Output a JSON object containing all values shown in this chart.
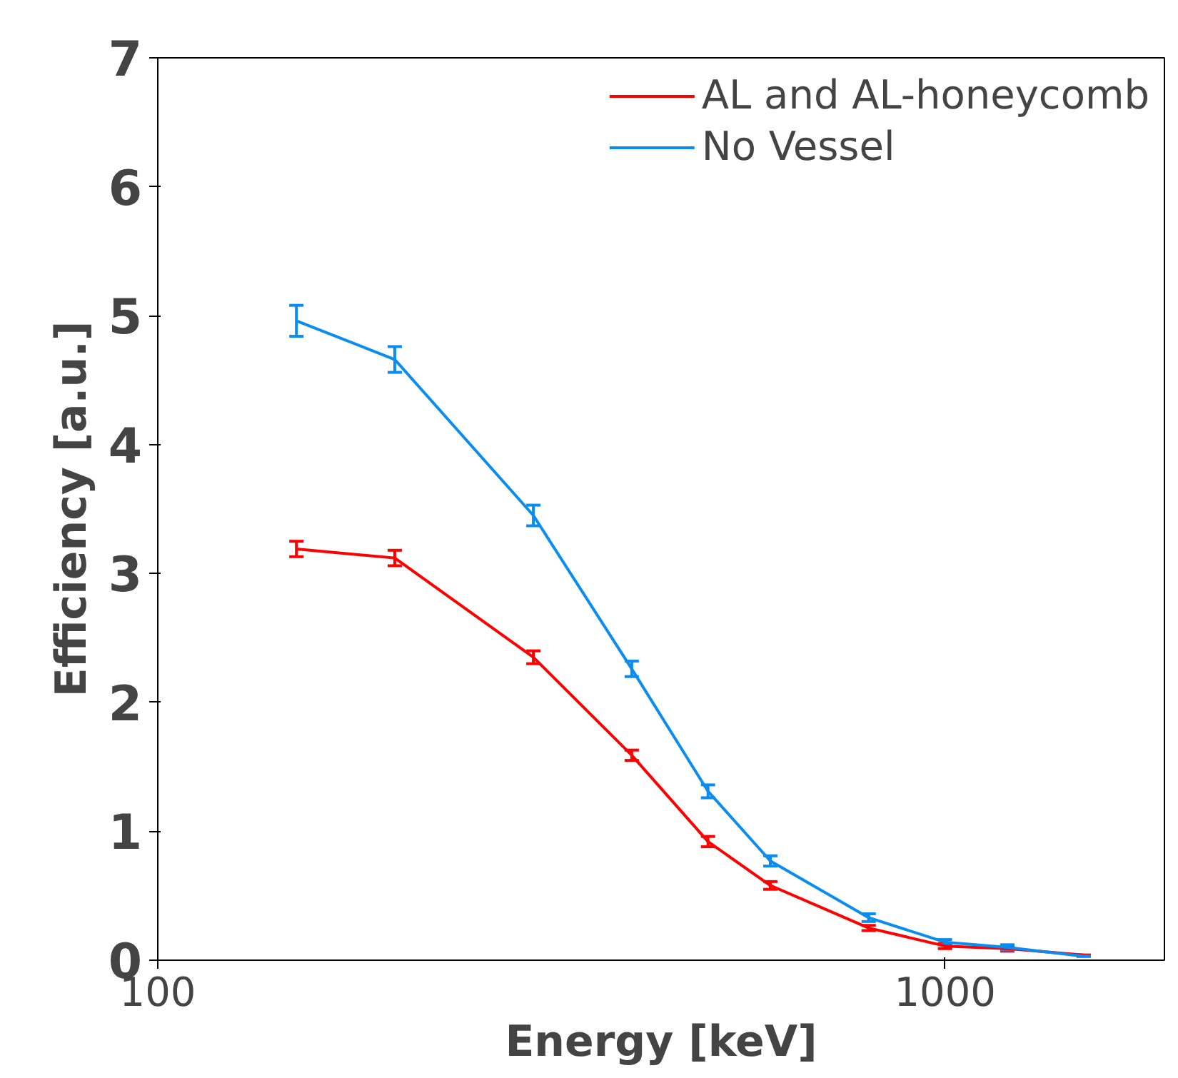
{
  "chart_data": {
    "type": "line",
    "xlabel": "Energy [keV]",
    "ylabel": "Efficiency [a.u.]",
    "log": "x",
    "xlim": [
      100,
      1900
    ],
    "xticks": [
      100,
      1000
    ],
    "ylim": [
      0,
      7
    ],
    "yticks": [
      0,
      1,
      2,
      3,
      4,
      5,
      6,
      7
    ],
    "grid": false,
    "legend": "top right",
    "marker": "none",
    "line_style": "solid",
    "x": [
      150,
      200,
      300,
      400,
      500,
      600,
      800,
      1000,
      1200,
      1500
    ],
    "series": [
      {
        "name": "AL and AL-honeycomb",
        "color": "#ff0000",
        "values": [
          3.19,
          3.12,
          2.35,
          1.59,
          0.92,
          0.58,
          0.25,
          0.11,
          0.09,
          0.04
        ],
        "errors": [
          0.06,
          0.06,
          0.05,
          0.04,
          0.04,
          0.03,
          0.02,
          0.02,
          0.02,
          null
        ]
      },
      {
        "name": "No Vessel",
        "color": "#0a8cf0",
        "values": [
          4.96,
          4.66,
          3.45,
          2.26,
          1.31,
          0.77,
          0.33,
          0.14,
          0.1,
          0.03
        ],
        "errors": [
          0.12,
          0.1,
          0.08,
          0.06,
          0.05,
          0.04,
          0.03,
          0.02,
          0.02,
          null
        ]
      }
    ]
  }
}
